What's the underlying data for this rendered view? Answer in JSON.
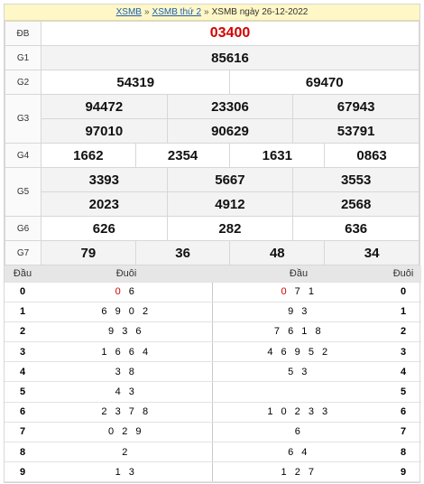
{
  "header": {
    "link1": "XSMB",
    "link2": "XSMB thứ 2",
    "title": "XSMB ngày 26-12-2022",
    "separator": "»"
  },
  "prizes": [
    {
      "label": "ĐB",
      "values": [
        "03400"
      ],
      "highlight": true
    },
    {
      "label": "G1",
      "values": [
        "85616"
      ]
    },
    {
      "label": "G2",
      "values": [
        "54319",
        "69470"
      ]
    },
    {
      "label": "G3",
      "rows": [
        [
          "94472",
          "23306",
          "67943"
        ],
        [
          "97010",
          "90629",
          "53791"
        ]
      ]
    },
    {
      "label": "G4",
      "values": [
        "1662",
        "2354",
        "1631",
        "0863"
      ]
    },
    {
      "label": "G5",
      "rows": [
        [
          "3393",
          "5667",
          "3553"
        ],
        [
          "2023",
          "4912",
          "2568"
        ]
      ]
    },
    {
      "label": "G6",
      "values": [
        "626",
        "282",
        "636"
      ]
    },
    {
      "label": "G7",
      "values": [
        "79",
        "36",
        "48",
        "34"
      ]
    }
  ],
  "loto": {
    "col_dau": "Đầu",
    "col_duoi": "Đuôi",
    "left": [
      {
        "head": "0",
        "tail_red": "0",
        "tail": " 6"
      },
      {
        "head": "1",
        "tail_red": "",
        "tail": "6 9 0 2"
      },
      {
        "head": "2",
        "tail_red": "",
        "tail": "9 3 6"
      },
      {
        "head": "3",
        "tail_red": "",
        "tail": "1 6 6 4"
      },
      {
        "head": "4",
        "tail_red": "",
        "tail": "3 8"
      },
      {
        "head": "5",
        "tail_red": "",
        "tail": "4 3"
      },
      {
        "head": "6",
        "tail_red": "",
        "tail": "2 3 7 8"
      },
      {
        "head": "7",
        "tail_red": "",
        "tail": "0 2 9"
      },
      {
        "head": "8",
        "tail_red": "",
        "tail": "2"
      },
      {
        "head": "9",
        "tail_red": "",
        "tail": "1 3"
      }
    ],
    "right": [
      {
        "head": "0",
        "tail_red": "0",
        "tail": " 7 1"
      },
      {
        "head": "1",
        "tail_red": "",
        "tail": "9 3"
      },
      {
        "head": "2",
        "tail_red": "",
        "tail": "7 6 1 8"
      },
      {
        "head": "3",
        "tail_red": "",
        "tail": "4 6 9 5 2"
      },
      {
        "head": "4",
        "tail_red": "",
        "tail": "5 3"
      },
      {
        "head": "5",
        "tail_red": "",
        "tail": ""
      },
      {
        "head": "6",
        "tail_red": "",
        "tail": "1 0 2 3 3"
      },
      {
        "head": "7",
        "tail_red": "",
        "tail": "6"
      },
      {
        "head": "8",
        "tail_red": "",
        "tail": "6 4"
      },
      {
        "head": "9",
        "tail_red": "",
        "tail": "1 2 7"
      }
    ]
  }
}
